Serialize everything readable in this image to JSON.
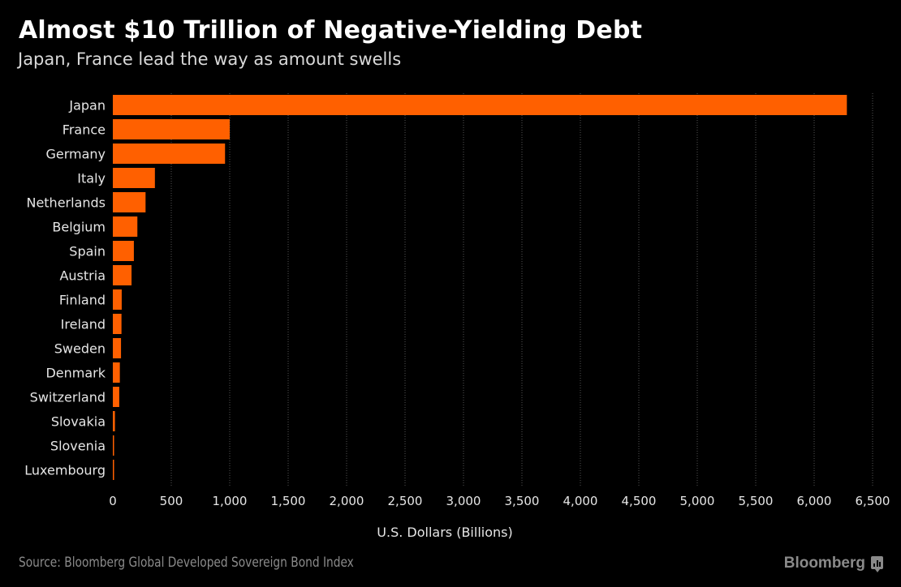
{
  "chart_data": {
    "type": "bar",
    "orientation": "horizontal",
    "title": "Almost $10 Trillion of Negative-Yielding Debt",
    "subtitle": "Japan, France lead the way as amount swells",
    "xlabel": "U.S. Dollars (Billions)",
    "ylabel": "",
    "categories": [
      "Japan",
      "France",
      "Germany",
      "Italy",
      "Netherlands",
      "Belgium",
      "Spain",
      "Austria",
      "Finland",
      "Ireland",
      "Sweden",
      "Denmark",
      "Switzerland",
      "Slovakia",
      "Slovenia",
      "Luxembourg"
    ],
    "values": [
      6280,
      1000,
      960,
      360,
      280,
      210,
      180,
      160,
      76,
      74,
      70,
      60,
      55,
      18,
      8,
      6
    ],
    "xlim": [
      0,
      6500
    ],
    "xticks": [
      0,
      500,
      1000,
      1500,
      2000,
      2500,
      3000,
      3500,
      4000,
      4500,
      5000,
      5500,
      6000,
      6500
    ],
    "xtick_labels": [
      "0",
      "500",
      "1,000",
      "1,500",
      "2,000",
      "2,500",
      "3,000",
      "3,500",
      "4,000",
      "4,500",
      "5,000",
      "5,500",
      "6,000",
      "6,500"
    ],
    "grid": true,
    "bar_color": "#ff6000",
    "source": "Source: Bloomberg Global Developed Sovereign Bond Index"
  },
  "branding": {
    "name": "Bloomberg",
    "icon": "bloomberg-chart-icon"
  },
  "colors": {
    "background": "#000000",
    "bar": "#ff6000",
    "grid": "#555555",
    "label": "#e6e6e6",
    "muted": "#8a8a8a"
  }
}
